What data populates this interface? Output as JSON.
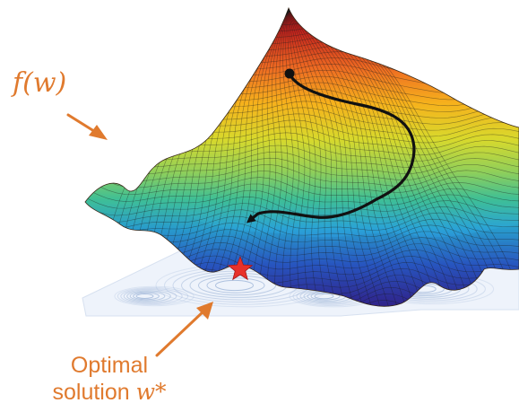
{
  "labels": {
    "function_name": "f",
    "function_arg": "w",
    "optimum_line1": "Optimal",
    "optimum_line2_text": "solution",
    "optimum_symbol": "w*"
  },
  "colors": {
    "annotation": "#e07a2e",
    "path": "#111111",
    "star": "#e8312a",
    "contour": "#9fb6d8"
  },
  "icons": {
    "optimum_marker": "star-icon",
    "path_start": "start-dot-icon"
  }
}
